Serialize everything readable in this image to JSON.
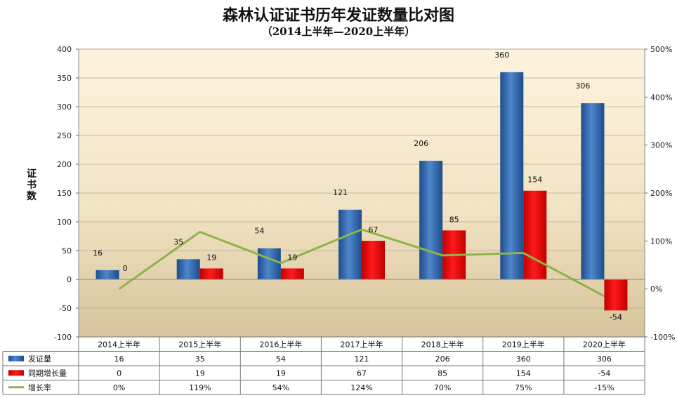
{
  "title": "森林认证证书历年发证数量比对图",
  "subtitle": "（2014上半年—2020上半年）",
  "chart_data": {
    "type": "bar",
    "categories": [
      "2014上半年",
      "2015上半年",
      "2016上半年",
      "2017上半年",
      "2018上半年",
      "2019上半年",
      "2020上半年"
    ],
    "series": [
      {
        "name": "发证量",
        "type": "bar",
        "axis": "left",
        "color": "#2e63a8",
        "values": [
          16,
          35,
          54,
          121,
          206,
          360,
          306
        ],
        "labels": [
          "16",
          "35",
          "54",
          "121",
          "206",
          "360",
          "306"
        ]
      },
      {
        "name": "同期增长量",
        "type": "bar",
        "axis": "left",
        "color": "#e00000",
        "values": [
          0,
          19,
          19,
          67,
          85,
          154,
          -54
        ],
        "labels": [
          "0",
          "19",
          "19",
          "67",
          "85",
          "154",
          "-54"
        ]
      },
      {
        "name": "增长率",
        "type": "line",
        "axis": "right",
        "color": "#8db34a",
        "values": [
          0,
          119,
          54,
          124,
          70,
          75,
          -15
        ],
        "labels": [
          "0%",
          "119%",
          "54%",
          "124%",
          "70%",
          "75%",
          "-15%"
        ]
      }
    ],
    "ylabel": "证书数",
    "ylim": [
      -100,
      400
    ],
    "yticks": [
      "-100",
      "-50",
      "0",
      "50",
      "100",
      "150",
      "200",
      "250",
      "300",
      "350",
      "400"
    ],
    "y2lim": [
      -100,
      500
    ],
    "y2ticks": [
      "-100%",
      "0%",
      "100%",
      "200%",
      "300%",
      "400%",
      "500%"
    ],
    "legend": "data-table-below"
  }
}
